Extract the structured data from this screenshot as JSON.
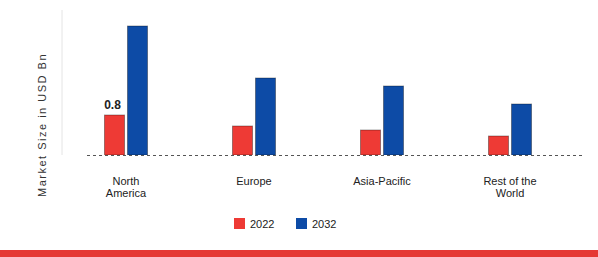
{
  "chart_data": {
    "type": "bar",
    "y_label": "Market Size in USD Bn",
    "categories": [
      "North America",
      "Europe",
      "Asia-Pacific",
      "Rest of the World"
    ],
    "series": [
      {
        "name": "2022",
        "color": "#ee3a35",
        "values": [
          0.8,
          0.58,
          0.5,
          0.38
        ],
        "value_labels": [
          "0.8",
          null,
          null,
          null
        ]
      },
      {
        "name": "2032",
        "color": "#0d4ba6",
        "values": [
          2.58,
          1.54,
          1.38,
          1.02
        ]
      }
    ],
    "ylim": [
      0,
      2.9
    ],
    "yticks": [],
    "grid": false,
    "tick_labels": "x",
    "data_labels": true,
    "legend": "bottom"
  }
}
